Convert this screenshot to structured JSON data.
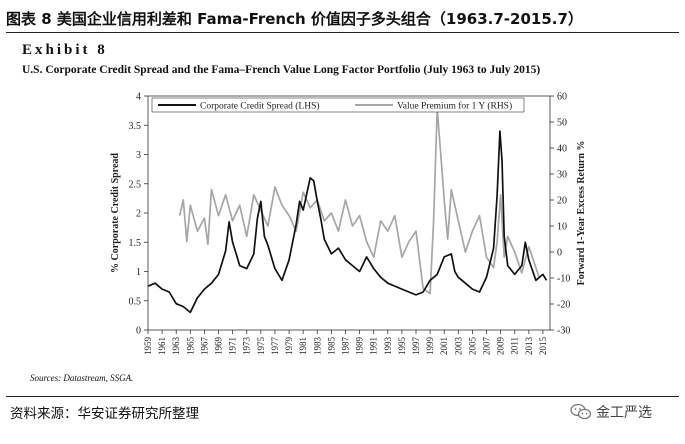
{
  "caption": "图表 8 美国企业信用利差和 Fama-French 价值因子多头组合（1963.7-2015.7）",
  "exhibit_label": "Exhibit 8",
  "sources": "Sources: Datastream, SSGA.",
  "footer_source": "资料来源：华安证券研究所整理",
  "brand_text": "金工严选",
  "brand_icon": "wechat-icon",
  "colors": {
    "credit": "#111111",
    "premium": "#a6a6a6",
    "axis": "#333333"
  },
  "chart_data": {
    "type": "line",
    "title": "U.S. Corporate Credit Spread and the Fama–French Value Long Factor Portfolio (July 1963 to July 2015)",
    "ylabel": "% Corporate Credit Spread",
    "y2label": "Forward 1-Year Excess Return %",
    "ylim": [
      0,
      4
    ],
    "y2lim": [
      -30,
      60
    ],
    "yticks": [
      "0",
      "0.5",
      "1",
      "1.5",
      "2",
      "2.5",
      "3",
      "3.5",
      "4"
    ],
    "y2ticks": [
      "-30",
      "-20",
      "-10",
      "0",
      "10",
      "20",
      "30",
      "40",
      "50",
      "60"
    ],
    "xlim": [
      1959,
      2016
    ],
    "xticks": [
      "1959",
      "1961",
      "1963",
      "1965",
      "1967",
      "1969",
      "1971",
      "1973",
      "1975",
      "1977",
      "1979",
      "1981",
      "1983",
      "1985",
      "1987",
      "1989",
      "1991",
      "1993",
      "1995",
      "1997",
      "1999",
      "2001",
      "2003",
      "2005",
      "2007",
      "2009",
      "2011",
      "2013",
      "2015"
    ],
    "series": [
      {
        "name": "Corporate Credit Spread (LHS)",
        "axis": "left",
        "x": [
          1959.0,
          1960.0,
          1961.0,
          1962.0,
          1963.0,
          1964.0,
          1965.0,
          1966.0,
          1967.0,
          1968.0,
          1969.0,
          1970.0,
          1970.5,
          1971.0,
          1971.5,
          1972.0,
          1973.0,
          1974.0,
          1974.5,
          1975.0,
          1975.5,
          1976.0,
          1977.0,
          1978.0,
          1979.0,
          1980.0,
          1980.5,
          1981.0,
          1982.0,
          1982.5,
          1983.0,
          1983.5,
          1984.0,
          1985.0,
          1986.0,
          1987.0,
          1988.0,
          1989.0,
          1990.0,
          1991.0,
          1992.0,
          1993.0,
          1994.0,
          1995.0,
          1996.0,
          1997.0,
          1998.0,
          1999.0,
          2000.0,
          2001.0,
          2002.0,
          2002.5,
          2003.0,
          2004.0,
          2005.0,
          2006.0,
          2007.0,
          2008.0,
          2008.5,
          2008.9,
          2009.2,
          2009.5,
          2010.0,
          2011.0,
          2012.0,
          2012.5,
          2013.0,
          2014.0,
          2015.0,
          2015.5
        ],
        "values": [
          0.75,
          0.8,
          0.7,
          0.65,
          0.45,
          0.4,
          0.3,
          0.55,
          0.7,
          0.8,
          0.95,
          1.35,
          1.85,
          1.5,
          1.3,
          1.1,
          1.05,
          1.3,
          1.9,
          2.2,
          1.6,
          1.45,
          1.05,
          0.85,
          1.2,
          1.8,
          2.2,
          2.05,
          2.6,
          2.55,
          2.2,
          1.9,
          1.55,
          1.3,
          1.4,
          1.2,
          1.1,
          1.0,
          1.25,
          1.05,
          0.9,
          0.8,
          0.75,
          0.7,
          0.65,
          0.6,
          0.65,
          0.85,
          0.95,
          1.25,
          1.3,
          1.0,
          0.9,
          0.8,
          0.7,
          0.65,
          0.9,
          1.4,
          2.3,
          3.4,
          2.9,
          1.6,
          1.1,
          0.95,
          1.1,
          1.5,
          1.2,
          0.85,
          0.95,
          0.85
        ]
      },
      {
        "name": "Value Premium for 1 Y (RHS)",
        "axis": "right",
        "x": [
          1963.5,
          1964.0,
          1964.5,
          1965.0,
          1966.0,
          1967.0,
          1967.5,
          1968.0,
          1969.0,
          1970.0,
          1971.0,
          1972.0,
          1973.0,
          1974.0,
          1975.0,
          1976.0,
          1977.0,
          1978.0,
          1979.0,
          1980.0,
          1981.0,
          1982.0,
          1983.0,
          1984.0,
          1985.0,
          1986.0,
          1987.0,
          1988.0,
          1989.0,
          1990.0,
          1991.0,
          1992.0,
          1993.0,
          1994.0,
          1995.0,
          1996.0,
          1997.0,
          1998.0,
          1999.0,
          1999.5,
          2000.0,
          2000.5,
          2001.0,
          2001.5,
          2002.0,
          2003.0,
          2004.0,
          2005.0,
          2006.0,
          2007.0,
          2008.0,
          2008.5,
          2009.0,
          2009.5,
          2010.0,
          2011.0,
          2012.0,
          2013.0,
          2014.0,
          2014.5
        ],
        "values": [
          14,
          20,
          4,
          18,
          8,
          13,
          3,
          24,
          14,
          22,
          12,
          18,
          6,
          22,
          16,
          10,
          25,
          18,
          14,
          8,
          23,
          17,
          20,
          12,
          15,
          8,
          20,
          10,
          14,
          4,
          -2,
          12,
          8,
          14,
          -2,
          4,
          8,
          -14,
          -16,
          12,
          55,
          38,
          20,
          5,
          24,
          12,
          0,
          8,
          14,
          -2,
          -6,
          4,
          22,
          -2,
          6,
          0,
          -8,
          2,
          -6,
          -10
        ]
      }
    ]
  }
}
